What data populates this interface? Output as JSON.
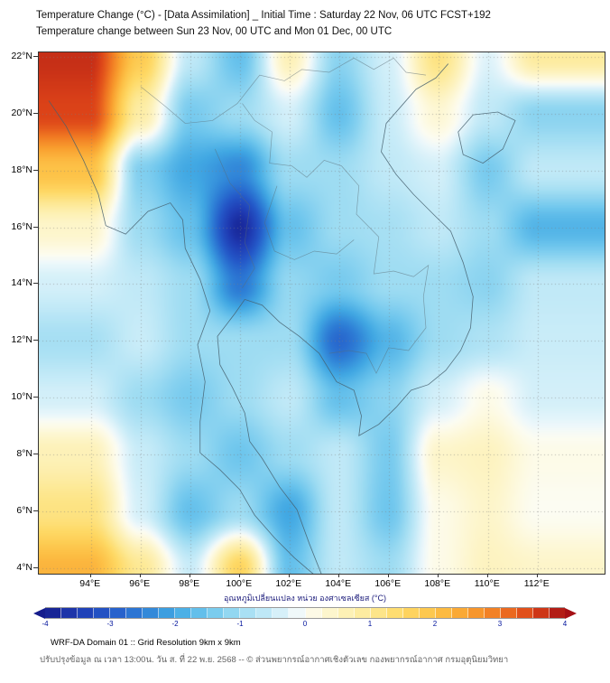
{
  "header": {
    "title_line1": "Temperature Change (°C) - [Data Assimilation] _ Initial Time : Saturday 22 Nov, 06 UTC FCST+192",
    "title_line2": "Temperature change between Sun 23 Nov, 00 UTC and Mon 01 Dec, 00 UTC"
  },
  "map": {
    "x_ticks": [
      {
        "v": 94,
        "label": "94°E"
      },
      {
        "v": 96,
        "label": "96°E"
      },
      {
        "v": 98,
        "label": "98°E"
      },
      {
        "v": 100,
        "label": "100°E"
      },
      {
        "v": 102,
        "label": "102°E"
      },
      {
        "v": 104,
        "label": "104°E"
      },
      {
        "v": 106,
        "label": "106°E"
      },
      {
        "v": 108,
        "label": "108°E"
      },
      {
        "v": 110,
        "label": "110°E"
      },
      {
        "v": 112,
        "label": "112°E"
      }
    ],
    "y_ticks": [
      {
        "v": 22,
        "label": "22°N"
      },
      {
        "v": 20,
        "label": "20°N"
      },
      {
        "v": 18,
        "label": "18°N"
      },
      {
        "v": 16,
        "label": "16°N"
      },
      {
        "v": 14,
        "label": "14°N"
      },
      {
        "v": 12,
        "label": "12°N"
      },
      {
        "v": 10,
        "label": "10°N"
      },
      {
        "v": 8,
        "label": "8°N"
      },
      {
        "v": 6,
        "label": "6°N"
      },
      {
        "v": 4,
        "label": "4°N"
      }
    ]
  },
  "colorbar": {
    "label": "อุณหภูมิเปลี่ยนแปลง หน่วย องศาเซลเซียส (°C)",
    "segment_step": 0.25,
    "ticks": [
      {
        "v": -4,
        "label": "-4"
      },
      {
        "v": -3,
        "label": "-3"
      },
      {
        "v": -2,
        "label": "-2"
      },
      {
        "v": -1,
        "label": "-1"
      },
      {
        "v": 0,
        "label": "0"
      },
      {
        "v": 1,
        "label": "1"
      },
      {
        "v": 2,
        "label": "2"
      },
      {
        "v": 3,
        "label": "3"
      },
      {
        "v": 4,
        "label": "4"
      }
    ],
    "stops": [
      {
        "v": -4.0,
        "c": "#151d8c"
      },
      {
        "v": -3.5,
        "c": "#1f3bb3"
      },
      {
        "v": -3.0,
        "c": "#2458c8"
      },
      {
        "v": -2.5,
        "c": "#2e7fd6"
      },
      {
        "v": -2.0,
        "c": "#41a8e3"
      },
      {
        "v": -1.5,
        "c": "#6ec6ed"
      },
      {
        "v": -1.0,
        "c": "#9edcf2"
      },
      {
        "v": -0.5,
        "c": "#c9ecf8"
      },
      {
        "v": -0.15,
        "c": "#eef8fb"
      },
      {
        "v": 0.0,
        "c": "#fcfcf2"
      },
      {
        "v": 0.15,
        "c": "#fdfae3"
      },
      {
        "v": 0.5,
        "c": "#fdf3c0"
      },
      {
        "v": 1.0,
        "c": "#fde995"
      },
      {
        "v": 1.5,
        "c": "#fed965"
      },
      {
        "v": 2.0,
        "c": "#fdc247"
      },
      {
        "v": 2.5,
        "c": "#f9a02f"
      },
      {
        "v": 3.0,
        "c": "#f07622"
      },
      {
        "v": 3.5,
        "c": "#dc4318"
      },
      {
        "v": 4.0,
        "c": "#a51015"
      }
    ]
  },
  "footer": {
    "line1": "WRF-DA Domain 01 :: Grid Resolution 9km x 9km",
    "line2": "ปรับปรุงข้อมูล ณ เวลา 13:00น. วัน ส. ที่ 22 พ.ย. 2568 -- © ส่วนพยากรณ์อากาศเชิงตัวเลข กองพยากรณ์อากาศ กรมอุตุนิยมวิทยา"
  },
  "chart_data": {
    "type": "heatmap",
    "title": "Temperature Change (°C) - [Data Assimilation] _ Initial Time : Saturday 22 Nov, 06 UTC FCST+192",
    "subtitle": "Temperature change between Sun 23 Nov, 00 UTC and Mon 01 Dec, 00 UTC",
    "xlabel": "",
    "ylabel": "",
    "value_units": "°C",
    "value_range": [
      -4,
      4
    ],
    "xlim": [
      91.9,
      114.7
    ],
    "ylim": [
      3.8,
      22.16
    ],
    "grid": true,
    "colorbar_label": "อุณหภูมิเปลี่ยนแปลง หน่วย องศาเซลเซียส (°C)",
    "x": [
      94,
      96,
      98,
      100,
      102,
      104,
      106,
      108,
      110,
      112
    ],
    "y": [
      22,
      20,
      18,
      16,
      14,
      12,
      10,
      8,
      6,
      4
    ],
    "values": [
      [
        3.7,
        1.8,
        -0.6,
        -1.6,
        0.6,
        -1.2,
        -0.4,
        1.2,
        -0.3,
        0.9
      ],
      [
        3.5,
        0.8,
        -1.4,
        -1.0,
        -0.4,
        -1.6,
        -0.5,
        0.3,
        -0.6,
        -1.2
      ],
      [
        2.0,
        -1.3,
        -2.0,
        -2.4,
        -1.0,
        -1.0,
        -0.6,
        -0.4,
        -1.4,
        -0.6
      ],
      [
        0.4,
        -1.0,
        -1.6,
        -3.8,
        -1.6,
        -1.0,
        -0.9,
        -0.6,
        -1.0,
        -1.8
      ],
      [
        -0.4,
        -0.6,
        -1.0,
        -2.6,
        -1.1,
        -1.4,
        -1.0,
        -1.0,
        -1.2,
        -0.6
      ],
      [
        -0.9,
        -0.5,
        -1.0,
        -1.0,
        -1.0,
        -2.8,
        -1.8,
        -1.0,
        -0.8,
        -0.5
      ],
      [
        -0.4,
        -1.0,
        -1.4,
        -1.0,
        -0.6,
        -1.6,
        -1.2,
        -0.4,
        0.1,
        -0.4
      ],
      [
        0.6,
        -0.5,
        -1.0,
        -1.5,
        -1.0,
        -0.6,
        -1.4,
        0.4,
        0.5,
        0.1
      ],
      [
        1.2,
        -0.4,
        -1.6,
        -1.0,
        -2.0,
        -0.6,
        -1.5,
        0.1,
        0.4,
        0.0
      ],
      [
        2.2,
        1.0,
        -0.5,
        1.6,
        -1.6,
        -0.6,
        -1.0,
        0.1,
        0.5,
        0.4
      ]
    ]
  }
}
